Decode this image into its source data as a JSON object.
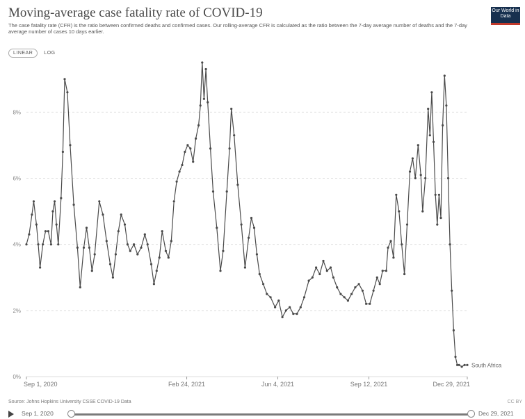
{
  "header": {
    "title": "Moving-average case fatality rate of COVID-19",
    "subtitle": "The case fatality rate (CFR) is the ratio between confirmed deaths and confirmed cases. Our rolling-average CFR is calculated as the ratio between the 7-day average number of deaths and the 7-day average number of cases 10 days earlier.",
    "logo_text": "Our World in Data"
  },
  "controls": {
    "linear_label": "LINEAR",
    "log_label": "LOG"
  },
  "footer": {
    "source": "Source: Johns Hopkins University CSSE COVID-19 Data",
    "license": "CC BY",
    "timeline_start": "Sep 1, 2020",
    "timeline_end": "Dec 29, 2021"
  },
  "colors": {
    "line": "#4a4a4a",
    "grid": "#dddddd",
    "logo_bg": "#17304f",
    "logo_accent": "#c0392b"
  },
  "chart_data": {
    "type": "line",
    "title": "Moving-average case fatality rate of COVID-19",
    "xlabel": "",
    "ylabel": "",
    "ylim": [
      0,
      9.5
    ],
    "y_ticks": [
      0,
      2,
      4,
      6,
      8
    ],
    "y_tick_labels": [
      "0%",
      "2%",
      "4%",
      "6%",
      "8%"
    ],
    "x_range": [
      "2020-09-01",
      "2021-12-29"
    ],
    "x_ticks": [
      "2020-09-01",
      "2021-02-24",
      "2021-06-04",
      "2021-09-12",
      "2021-12-29"
    ],
    "x_tick_labels": [
      "Sep 1, 2020",
      "Feb 24, 2021",
      "Jun 4, 2021",
      "Sep 12, 2021",
      "Dec 29, 2021"
    ],
    "grid": true,
    "series": [
      {
        "name": "South Africa",
        "points": [
          [
            "2020-09-01",
            4.0
          ],
          [
            "2020-09-04",
            4.3
          ],
          [
            "2020-09-07",
            4.9
          ],
          [
            "2020-09-09",
            5.3
          ],
          [
            "2020-09-12",
            4.6
          ],
          [
            "2020-09-14",
            4.0
          ],
          [
            "2020-09-16",
            3.3
          ],
          [
            "2020-09-19",
            4.0
          ],
          [
            "2020-09-22",
            4.4
          ],
          [
            "2020-09-25",
            4.4
          ],
          [
            "2020-09-28",
            4.0
          ],
          [
            "2020-09-30",
            5.0
          ],
          [
            "2020-10-02",
            5.3
          ],
          [
            "2020-10-04",
            4.6
          ],
          [
            "2020-10-06",
            4.0
          ],
          [
            "2020-10-09",
            5.4
          ],
          [
            "2020-10-11",
            6.8
          ],
          [
            "2020-10-13",
            9.0
          ],
          [
            "2020-10-16",
            8.6
          ],
          [
            "2020-10-19",
            7.0
          ],
          [
            "2020-10-23",
            5.2
          ],
          [
            "2020-10-27",
            3.9
          ],
          [
            "2020-10-30",
            2.7
          ],
          [
            "2020-11-03",
            3.9
          ],
          [
            "2020-11-06",
            4.5
          ],
          [
            "2020-11-09",
            3.9
          ],
          [
            "2020-11-12",
            3.2
          ],
          [
            "2020-11-15",
            3.7
          ],
          [
            "2020-11-20",
            5.3
          ],
          [
            "2020-11-24",
            4.9
          ],
          [
            "2020-11-28",
            4.1
          ],
          [
            "2020-12-02",
            3.4
          ],
          [
            "2020-12-05",
            3.0
          ],
          [
            "2020-12-08",
            3.7
          ],
          [
            "2020-12-11",
            4.4
          ],
          [
            "2020-12-14",
            4.9
          ],
          [
            "2020-12-18",
            4.6
          ],
          [
            "2020-12-21",
            4.0
          ],
          [
            "2020-12-24",
            3.8
          ],
          [
            "2020-12-28",
            4.0
          ],
          [
            "2021-01-01",
            3.7
          ],
          [
            "2021-01-05",
            3.9
          ],
          [
            "2021-01-09",
            4.3
          ],
          [
            "2021-01-12",
            4.0
          ],
          [
            "2021-01-16",
            3.4
          ],
          [
            "2021-01-19",
            2.8
          ],
          [
            "2021-01-22",
            3.2
          ],
          [
            "2021-01-25",
            3.6
          ],
          [
            "2021-01-28",
            4.4
          ],
          [
            "2021-02-01",
            3.8
          ],
          [
            "2021-02-04",
            3.6
          ],
          [
            "2021-02-07",
            4.1
          ],
          [
            "2021-02-10",
            5.3
          ],
          [
            "2021-02-13",
            5.9
          ],
          [
            "2021-02-16",
            6.2
          ],
          [
            "2021-02-19",
            6.4
          ],
          [
            "2021-02-22",
            6.8
          ],
          [
            "2021-02-25",
            7.0
          ],
          [
            "2021-02-28",
            6.9
          ],
          [
            "2021-03-03",
            6.5
          ],
          [
            "2021-03-06",
            7.2
          ],
          [
            "2021-03-09",
            7.6
          ],
          [
            "2021-03-11",
            8.2
          ],
          [
            "2021-03-13",
            9.5
          ],
          [
            "2021-03-15",
            8.4
          ],
          [
            "2021-03-17",
            9.3
          ],
          [
            "2021-03-19",
            8.3
          ],
          [
            "2021-03-22",
            6.9
          ],
          [
            "2021-03-25",
            5.6
          ],
          [
            "2021-03-29",
            4.5
          ],
          [
            "2021-04-02",
            3.2
          ],
          [
            "2021-04-05",
            3.8
          ],
          [
            "2021-04-09",
            5.6
          ],
          [
            "2021-04-12",
            6.9
          ],
          [
            "2021-04-14",
            8.1
          ],
          [
            "2021-04-17",
            7.3
          ],
          [
            "2021-04-21",
            5.8
          ],
          [
            "2021-04-25",
            4.6
          ],
          [
            "2021-04-29",
            3.3
          ],
          [
            "2021-05-03",
            4.2
          ],
          [
            "2021-05-06",
            4.8
          ],
          [
            "2021-05-09",
            4.5
          ],
          [
            "2021-05-12",
            3.7
          ],
          [
            "2021-05-15",
            3.1
          ],
          [
            "2021-05-19",
            2.8
          ],
          [
            "2021-05-23",
            2.5
          ],
          [
            "2021-05-27",
            2.4
          ],
          [
            "2021-06-01",
            2.1
          ],
          [
            "2021-06-05",
            2.3
          ],
          [
            "2021-06-09",
            1.8
          ],
          [
            "2021-06-13",
            2.0
          ],
          [
            "2021-06-17",
            2.1
          ],
          [
            "2021-06-21",
            1.9
          ],
          [
            "2021-06-25",
            1.9
          ],
          [
            "2021-06-29",
            2.1
          ],
          [
            "2021-07-03",
            2.4
          ],
          [
            "2021-07-08",
            2.9
          ],
          [
            "2021-07-12",
            3.0
          ],
          [
            "2021-07-16",
            3.3
          ],
          [
            "2021-07-20",
            3.1
          ],
          [
            "2021-07-24",
            3.5
          ],
          [
            "2021-07-28",
            3.2
          ],
          [
            "2021-08-01",
            3.3
          ],
          [
            "2021-08-04",
            3.0
          ],
          [
            "2021-08-08",
            2.7
          ],
          [
            "2021-08-12",
            2.5
          ],
          [
            "2021-08-16",
            2.4
          ],
          [
            "2021-08-20",
            2.3
          ],
          [
            "2021-08-24",
            2.5
          ],
          [
            "2021-08-28",
            2.7
          ],
          [
            "2021-09-01",
            2.8
          ],
          [
            "2021-09-05",
            2.6
          ],
          [
            "2021-09-09",
            2.2
          ],
          [
            "2021-09-13",
            2.2
          ],
          [
            "2021-09-17",
            2.6
          ],
          [
            "2021-09-21",
            3.0
          ],
          [
            "2021-09-24",
            2.8
          ],
          [
            "2021-09-27",
            3.2
          ],
          [
            "2021-10-01",
            3.2
          ],
          [
            "2021-10-03",
            3.9
          ],
          [
            "2021-10-06",
            4.1
          ],
          [
            "2021-10-09",
            3.6
          ],
          [
            "2021-10-12",
            5.5
          ],
          [
            "2021-10-15",
            5.0
          ],
          [
            "2021-10-18",
            4.0
          ],
          [
            "2021-10-21",
            3.1
          ],
          [
            "2021-10-24",
            4.6
          ],
          [
            "2021-10-27",
            6.2
          ],
          [
            "2021-10-30",
            6.6
          ],
          [
            "2021-11-02",
            6.0
          ],
          [
            "2021-11-05",
            7.0
          ],
          [
            "2021-11-08",
            6.1
          ],
          [
            "2021-11-10",
            5.0
          ],
          [
            "2021-11-13",
            6.0
          ],
          [
            "2021-11-16",
            8.1
          ],
          [
            "2021-11-18",
            7.3
          ],
          [
            "2021-11-20",
            8.6
          ],
          [
            "2021-11-22",
            7.1
          ],
          [
            "2021-11-24",
            5.5
          ],
          [
            "2021-11-26",
            4.6
          ],
          [
            "2021-11-28",
            5.5
          ],
          [
            "2021-11-30",
            4.8
          ],
          [
            "2021-12-02",
            7.6
          ],
          [
            "2021-12-04",
            9.1
          ],
          [
            "2021-12-06",
            8.2
          ],
          [
            "2021-12-08",
            6.0
          ],
          [
            "2021-12-10",
            4.0
          ],
          [
            "2021-12-12",
            2.6
          ],
          [
            "2021-12-14",
            1.4
          ],
          [
            "2021-12-16",
            0.6
          ],
          [
            "2021-12-18",
            0.35
          ],
          [
            "2021-12-20",
            0.35
          ],
          [
            "2021-12-23",
            0.3
          ],
          [
            "2021-12-26",
            0.35
          ],
          [
            "2021-12-29",
            0.35
          ]
        ]
      }
    ]
  }
}
